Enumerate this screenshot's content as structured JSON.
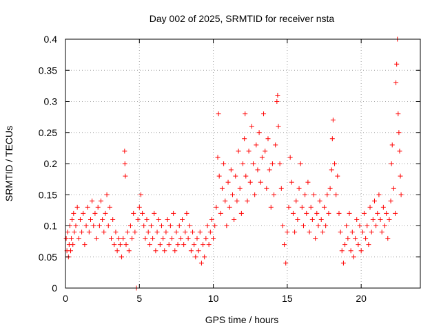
{
  "chart_data": {
    "type": "scatter",
    "title": "Day 002 of 2025, SRMTID for receiver nsta",
    "xlabel": "GPS time / hours",
    "ylabel": "SRMTID / TECUs",
    "xlim": [
      0,
      24
    ],
    "ylim": [
      0,
      0.4
    ],
    "xticks": [
      0,
      5,
      10,
      15,
      20
    ],
    "xtick_labels": [
      "0",
      "5",
      "10",
      "15",
      "20"
    ],
    "yticks": [
      0,
      0.05,
      0.1,
      0.15,
      0.2,
      0.25,
      0.3,
      0.35,
      0.4
    ],
    "ytick_labels": [
      "0",
      "0.05",
      "0.1",
      "0.15",
      "0.2",
      "0.25",
      "0.3",
      "0.35",
      "0.4"
    ],
    "grid": true,
    "marker": "+",
    "series": [
      {
        "name": "nsta",
        "color": "#ff0000",
        "points": [
          [
            0.05,
            0.08
          ],
          [
            0.1,
            0.06
          ],
          [
            0.15,
            0.09
          ],
          [
            0.2,
            0.05
          ],
          [
            0.25,
            0.07
          ],
          [
            0.3,
            0.1
          ],
          [
            0.35,
            0.06
          ],
          [
            0.4,
            0.08
          ],
          [
            0.45,
            0.11
          ],
          [
            0.5,
            0.07
          ],
          [
            0.55,
            0.12
          ],
          [
            0.6,
            0.09
          ],
          [
            0.7,
            0.1
          ],
          [
            0.8,
            0.13
          ],
          [
            0.9,
            0.08
          ],
          [
            1.0,
            0.11
          ],
          [
            1.1,
            0.09
          ],
          [
            1.2,
            0.12
          ],
          [
            1.3,
            0.07
          ],
          [
            1.4,
            0.1
          ],
          [
            1.5,
            0.13
          ],
          [
            1.6,
            0.09
          ],
          [
            1.7,
            0.11
          ],
          [
            1.8,
            0.14
          ],
          [
            1.9,
            0.1
          ],
          [
            2.0,
            0.12
          ],
          [
            2.1,
            0.08
          ],
          [
            2.2,
            0.13
          ],
          [
            2.3,
            0.1
          ],
          [
            2.4,
            0.14
          ],
          [
            2.5,
            0.11
          ],
          [
            2.6,
            0.09
          ],
          [
            2.7,
            0.12
          ],
          [
            2.8,
            0.15
          ],
          [
            2.9,
            0.1
          ],
          [
            3.0,
            0.13
          ],
          [
            3.1,
            0.08
          ],
          [
            3.2,
            0.11
          ],
          [
            3.3,
            0.07
          ],
          [
            3.4,
            0.09
          ],
          [
            3.5,
            0.06
          ],
          [
            3.6,
            0.08
          ],
          [
            3.7,
            0.07
          ],
          [
            3.8,
            0.05
          ],
          [
            3.9,
            0.08
          ],
          [
            4.0,
            0.22
          ],
          [
            4.02,
            0.2
          ],
          [
            4.05,
            0.18
          ],
          [
            4.1,
            0.07
          ],
          [
            4.2,
            0.09
          ],
          [
            4.3,
            0.06
          ],
          [
            4.4,
            0.1
          ],
          [
            4.5,
            0.08
          ],
          [
            4.6,
            0.12
          ],
          [
            4.7,
            0.09
          ],
          [
            4.8,
            0.0
          ],
          [
            4.9,
            0.11
          ],
          [
            5.0,
            0.13
          ],
          [
            5.1,
            0.15
          ],
          [
            5.2,
            0.12
          ],
          [
            5.3,
            0.1
          ],
          [
            5.4,
            0.08
          ],
          [
            5.5,
            0.11
          ],
          [
            5.6,
            0.09
          ],
          [
            5.7,
            0.07
          ],
          [
            5.8,
            0.1
          ],
          [
            5.9,
            0.08
          ],
          [
            6.0,
            0.12
          ],
          [
            6.1,
            0.06
          ],
          [
            6.2,
            0.09
          ],
          [
            6.3,
            0.11
          ],
          [
            6.4,
            0.07
          ],
          [
            6.5,
            0.1
          ],
          [
            6.6,
            0.08
          ],
          [
            6.7,
            0.06
          ],
          [
            6.8,
            0.09
          ],
          [
            6.9,
            0.11
          ],
          [
            7.0,
            0.07
          ],
          [
            7.1,
            0.1
          ],
          [
            7.2,
            0.08
          ],
          [
            7.3,
            0.12
          ],
          [
            7.4,
            0.06
          ],
          [
            7.5,
            0.09
          ],
          [
            7.6,
            0.07
          ],
          [
            7.7,
            0.1
          ],
          [
            7.8,
            0.08
          ],
          [
            7.9,
            0.11
          ],
          [
            8.0,
            0.07
          ],
          [
            8.1,
            0.09
          ],
          [
            8.2,
            0.12
          ],
          [
            8.3,
            0.08
          ],
          [
            8.4,
            0.1
          ],
          [
            8.5,
            0.06
          ],
          [
            8.6,
            0.09
          ],
          [
            8.7,
            0.07
          ],
          [
            8.8,
            0.05
          ],
          [
            8.9,
            0.08
          ],
          [
            9.0,
            0.06
          ],
          [
            9.1,
            0.09
          ],
          [
            9.2,
            0.04
          ],
          [
            9.3,
            0.07
          ],
          [
            9.4,
            0.05
          ],
          [
            9.5,
            0.08
          ],
          [
            9.6,
            0.1
          ],
          [
            9.7,
            0.07
          ],
          [
            9.8,
            0.09
          ],
          [
            9.9,
            0.11
          ],
          [
            10.0,
            0.08
          ],
          [
            10.1,
            0.1
          ],
          [
            10.2,
            0.13
          ],
          [
            10.3,
            0.21
          ],
          [
            10.35,
            0.28
          ],
          [
            10.4,
            0.18
          ],
          [
            10.5,
            0.12
          ],
          [
            10.6,
            0.16
          ],
          [
            10.7,
            0.2
          ],
          [
            10.8,
            0.14
          ],
          [
            10.9,
            0.1
          ],
          [
            11.0,
            0.17
          ],
          [
            11.1,
            0.13
          ],
          [
            11.2,
            0.19
          ],
          [
            11.3,
            0.15
          ],
          [
            11.4,
            0.11
          ],
          [
            11.5,
            0.18
          ],
          [
            11.6,
            0.14
          ],
          [
            11.7,
            0.22
          ],
          [
            11.8,
            0.16
          ],
          [
            11.9,
            0.12
          ],
          [
            12.0,
            0.2
          ],
          [
            12.1,
            0.24
          ],
          [
            12.15,
            0.28
          ],
          [
            12.2,
            0.18
          ],
          [
            12.3,
            0.14
          ],
          [
            12.4,
            0.22
          ],
          [
            12.5,
            0.17
          ],
          [
            12.6,
            0.26
          ],
          [
            12.7,
            0.2
          ],
          [
            12.8,
            0.15
          ],
          [
            12.9,
            0.23
          ],
          [
            13.0,
            0.19
          ],
          [
            13.1,
            0.25
          ],
          [
            13.2,
            0.17
          ],
          [
            13.3,
            0.21
          ],
          [
            13.4,
            0.28
          ],
          [
            13.5,
            0.22
          ],
          [
            13.6,
            0.16
          ],
          [
            13.7,
            0.24
          ],
          [
            13.8,
            0.19
          ],
          [
            13.9,
            0.13
          ],
          [
            14.0,
            0.2
          ],
          [
            14.1,
            0.15
          ],
          [
            14.2,
            0.23
          ],
          [
            14.3,
            0.3
          ],
          [
            14.35,
            0.31
          ],
          [
            14.4,
            0.26
          ],
          [
            14.5,
            0.2
          ],
          [
            14.6,
            0.16
          ],
          [
            14.7,
            0.1
          ],
          [
            14.8,
            0.07
          ],
          [
            14.9,
            0.04
          ],
          [
            15.0,
            0.09
          ],
          [
            15.1,
            0.13
          ],
          [
            15.2,
            0.21
          ],
          [
            15.3,
            0.17
          ],
          [
            15.4,
            0.12
          ],
          [
            15.5,
            0.09
          ],
          [
            15.6,
            0.14
          ],
          [
            15.7,
            0.11
          ],
          [
            15.8,
            0.16
          ],
          [
            15.9,
            0.2
          ],
          [
            16.0,
            0.13
          ],
          [
            16.1,
            0.1
          ],
          [
            16.2,
            0.15
          ],
          [
            16.3,
            0.12
          ],
          [
            16.4,
            0.17
          ],
          [
            16.5,
            0.09
          ],
          [
            16.6,
            0.13
          ],
          [
            16.7,
            0.11
          ],
          [
            16.8,
            0.15
          ],
          [
            16.9,
            0.08
          ],
          [
            17.0,
            0.12
          ],
          [
            17.1,
            0.1
          ],
          [
            17.2,
            0.14
          ],
          [
            17.3,
            0.11
          ],
          [
            17.4,
            0.09
          ],
          [
            17.5,
            0.13
          ],
          [
            17.6,
            0.1
          ],
          [
            17.7,
            0.15
          ],
          [
            17.8,
            0.12
          ],
          [
            17.9,
            0.16
          ],
          [
            18.0,
            0.19
          ],
          [
            18.05,
            0.24
          ],
          [
            18.1,
            0.27
          ],
          [
            18.2,
            0.2
          ],
          [
            18.3,
            0.15
          ],
          [
            18.4,
            0.18
          ],
          [
            18.5,
            0.12
          ],
          [
            18.6,
            0.09
          ],
          [
            18.7,
            0.06
          ],
          [
            18.8,
            0.04
          ],
          [
            18.9,
            0.07
          ],
          [
            19.0,
            0.1
          ],
          [
            19.1,
            0.08
          ],
          [
            19.2,
            0.12
          ],
          [
            19.3,
            0.06
          ],
          [
            19.4,
            0.09
          ],
          [
            19.5,
            0.05
          ],
          [
            19.6,
            0.08
          ],
          [
            19.7,
            0.11
          ],
          [
            19.8,
            0.07
          ],
          [
            19.9,
            0.1
          ],
          [
            20.0,
            0.06
          ],
          [
            20.1,
            0.09
          ],
          [
            20.2,
            0.12
          ],
          [
            20.3,
            0.08
          ],
          [
            20.4,
            0.1
          ],
          [
            20.5,
            0.07
          ],
          [
            20.6,
            0.13
          ],
          [
            20.7,
            0.09
          ],
          [
            20.8,
            0.11
          ],
          [
            20.9,
            0.14
          ],
          [
            21.0,
            0.1
          ],
          [
            21.1,
            0.12
          ],
          [
            21.2,
            0.15
          ],
          [
            21.3,
            0.11
          ],
          [
            21.4,
            0.09
          ],
          [
            21.5,
            0.13
          ],
          [
            21.6,
            0.1
          ],
          [
            21.7,
            0.12
          ],
          [
            21.8,
            0.08
          ],
          [
            21.9,
            0.11
          ],
          [
            22.0,
            0.14
          ],
          [
            22.05,
            0.2
          ],
          [
            22.1,
            0.23
          ],
          [
            22.2,
            0.16
          ],
          [
            22.3,
            0.12
          ],
          [
            22.35,
            0.33
          ],
          [
            22.4,
            0.36
          ],
          [
            22.45,
            0.4
          ],
          [
            22.5,
            0.28
          ],
          [
            22.55,
            0.25
          ],
          [
            22.6,
            0.22
          ],
          [
            22.65,
            0.18
          ],
          [
            22.7,
            0.15
          ]
        ]
      }
    ]
  }
}
